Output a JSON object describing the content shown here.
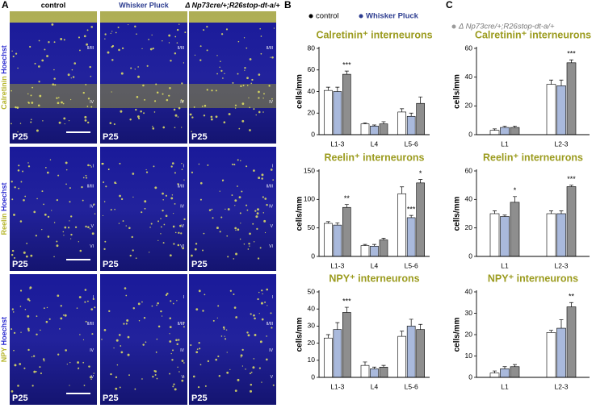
{
  "panel_labels": [
    "A",
    "B",
    "C"
  ],
  "panel_a": {
    "columns": [
      "control",
      "Whisker Pluck",
      "Δ Np73cre/+;R26stop-dt-a/+"
    ],
    "rows": [
      {
        "marker": "Calretinin",
        "stain": "Hoechst",
        "age": "P25",
        "layers": [
          "II/III",
          "IV"
        ]
      },
      {
        "marker": "Reelin",
        "stain": "Hoechst",
        "age": "P25",
        "layers": [
          "I",
          "II/III",
          "IV",
          "V",
          "VI"
        ]
      },
      {
        "marker": "NPY",
        "stain": "Hoechst",
        "age": "P25",
        "layers": [
          "I",
          "II/III",
          "IV",
          "V"
        ]
      }
    ]
  },
  "legend": [
    {
      "name": "control",
      "color": "#ffffff",
      "dot": "#000000"
    },
    {
      "name": "Whisker Pluck",
      "color": "#a9b9dc",
      "dot": "#2b3b8f"
    },
    {
      "name": "Δ Np73cre/+;R26stop-dt-a/+",
      "color": "#8e8e8e",
      "dot": "#9a9a9a"
    }
  ],
  "chart_data": [
    {
      "type": "bar",
      "title": "Calretinin⁺ interneurons",
      "ylabel": "cells/mm",
      "categories": [
        "L1-3",
        "L4",
        "L5-6"
      ],
      "ylim": [
        0,
        80
      ],
      "yticks": [
        0,
        20,
        40,
        60,
        80
      ],
      "series": [
        {
          "values": [
            41,
            10,
            21
          ],
          "errors": [
            3,
            1,
            3
          ],
          "significance": [
            null,
            null,
            null
          ]
        },
        {
          "values": [
            40,
            8,
            17
          ],
          "errors": [
            4,
            1,
            3
          ],
          "significance": [
            null,
            null,
            null
          ]
        },
        {
          "values": [
            56,
            10,
            29
          ],
          "errors": [
            3,
            2,
            6
          ],
          "significance": [
            "***",
            null,
            null
          ]
        }
      ]
    },
    {
      "type": "bar",
      "title": "Reelin⁺ interneurons",
      "ylabel": "cells/mm",
      "categories": [
        "L1-3",
        "L4",
        "L5-6"
      ],
      "ylim": [
        0,
        150
      ],
      "yticks": [
        0,
        50,
        100,
        150
      ],
      "series": [
        {
          "values": [
            58,
            19,
            110
          ],
          "errors": [
            3,
            2,
            12
          ],
          "significance": [
            null,
            null,
            null
          ]
        },
        {
          "values": [
            55,
            18,
            68
          ],
          "errors": [
            4,
            3,
            4
          ],
          "significance": [
            null,
            null,
            "***"
          ]
        },
        {
          "values": [
            86,
            29,
            129
          ],
          "errors": [
            5,
            3,
            6
          ],
          "significance": [
            "**",
            null,
            "*"
          ]
        }
      ]
    },
    {
      "type": "bar",
      "title": "NPY⁺ interneurons",
      "ylabel": "cells/mm",
      "categories": [
        "L1-3",
        "L4",
        "L5-6"
      ],
      "ylim": [
        0,
        50
      ],
      "yticks": [
        0,
        10,
        20,
        30,
        40,
        50
      ],
      "series": [
        {
          "values": [
            23,
            7,
            24
          ],
          "errors": [
            2,
            2,
            3
          ],
          "significance": [
            null,
            null,
            null
          ]
        },
        {
          "values": [
            28,
            5,
            30
          ],
          "errors": [
            4,
            1,
            4
          ],
          "significance": [
            null,
            null,
            null
          ]
        },
        {
          "values": [
            38,
            6,
            28
          ],
          "errors": [
            3,
            1,
            3
          ],
          "significance": [
            "***",
            null,
            null
          ]
        }
      ]
    },
    {
      "type": "bar",
      "title": "Calretinin⁺ interneurons",
      "ylabel": "cells/mm",
      "categories": [
        "L1",
        "L2-3"
      ],
      "ylim": [
        0,
        60
      ],
      "yticks": [
        0,
        20,
        40,
        60
      ],
      "series": [
        {
          "values": [
            3,
            35
          ],
          "errors": [
            1,
            3
          ],
          "significance": [
            null,
            null
          ]
        },
        {
          "values": [
            5,
            34
          ],
          "errors": [
            1,
            4
          ],
          "significance": [
            null,
            null
          ]
        },
        {
          "values": [
            5,
            50
          ],
          "errors": [
            1,
            2
          ],
          "significance": [
            null,
            "***"
          ]
        }
      ]
    },
    {
      "type": "bar",
      "title": "Reelin⁺ interneurons",
      "ylabel": "cells/mm",
      "categories": [
        "L1",
        "L2-3"
      ],
      "ylim": [
        0,
        60
      ],
      "yticks": [
        0,
        20,
        40,
        60
      ],
      "series": [
        {
          "values": [
            30,
            30
          ],
          "errors": [
            2,
            2
          ],
          "significance": [
            null,
            null
          ]
        },
        {
          "values": [
            28,
            30
          ],
          "errors": [
            1,
            2
          ],
          "significance": [
            null,
            null
          ]
        },
        {
          "values": [
            38,
            49
          ],
          "errors": [
            4,
            1
          ],
          "significance": [
            "*",
            "***"
          ]
        }
      ]
    },
    {
      "type": "bar",
      "title": "NPY⁺ interneurons",
      "ylabel": "cells/mm",
      "categories": [
        "L1",
        "L2-3"
      ],
      "ylim": [
        0,
        40
      ],
      "yticks": [
        0,
        10,
        20,
        30,
        40
      ],
      "series": [
        {
          "values": [
            2,
            21
          ],
          "errors": [
            1,
            1
          ],
          "significance": [
            null,
            null
          ]
        },
        {
          "values": [
            4,
            23
          ],
          "errors": [
            1,
            4
          ],
          "significance": [
            null,
            null
          ]
        },
        {
          "values": [
            5,
            33
          ],
          "errors": [
            1,
            2
          ],
          "significance": [
            null,
            "**"
          ]
        }
      ]
    }
  ]
}
